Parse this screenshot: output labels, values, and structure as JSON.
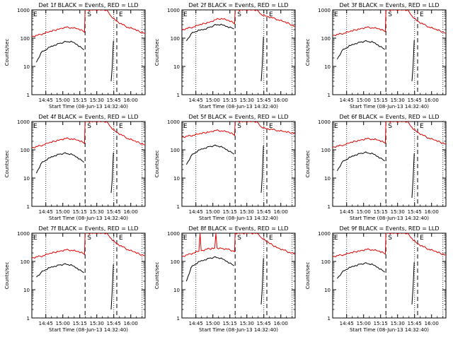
{
  "figure": {
    "colors": {
      "events": "#000000",
      "lld": "#e00000",
      "axes": "#000000",
      "markers": "#000000"
    }
  },
  "chart_data": [
    {
      "type": "line",
      "title": "Det 1f BLACK = Events, RED = LLD",
      "xlabel": "Start Time (08-Jun-13 14:32:40)",
      "ylabel": "Counts/sec",
      "x_ticks": [
        "14:45",
        "15:00",
        "15:15",
        "15:30",
        "15:45",
        "16:00"
      ],
      "y_ticks": [
        "1",
        "10",
        "100",
        "1000"
      ],
      "xlim_minutes_after_start": [
        0,
        100
      ],
      "ylim": [
        1,
        1000
      ],
      "yscale": "log",
      "markers": [
        {
          "label": "S",
          "x": 47
        },
        {
          "label": "E",
          "x": 75
        }
      ],
      "series": [
        {
          "name": "BLACK = Events",
          "color": "#000000",
          "x": [
            4,
            8,
            12,
            16,
            20,
            24,
            28,
            32,
            36,
            40,
            44,
            46,
            70,
            71,
            72
          ],
          "values": [
            14,
            30,
            38,
            48,
            57,
            65,
            72,
            75,
            72,
            60,
            45,
            38,
            3,
            10,
            80
          ]
        },
        {
          "name": "RED = LLD",
          "color": "#e00000",
          "x": [
            0,
            5,
            10,
            15,
            20,
            25,
            30,
            35,
            40,
            45,
            46.5,
            47,
            60,
            66,
            70,
            75,
            80,
            85,
            90,
            95,
            100
          ],
          "values": [
            115,
            125,
            145,
            165,
            190,
            220,
            240,
            235,
            215,
            180,
            160,
            1000,
            1000,
            1000,
            600,
            400,
            300,
            240,
            210,
            170,
            150
          ]
        }
      ]
    },
    {
      "type": "line",
      "title": "Det 2f BLACK = Events, RED = LLD",
      "xlabel": "Start Time (08-Jun-13 14:32:40)",
      "ylabel": "Counts/sec",
      "x_ticks": [
        "14:45",
        "15:00",
        "15:15",
        "15:30",
        "15:45",
        "16:00"
      ],
      "y_ticks": [
        "1",
        "10",
        "100",
        "1000"
      ],
      "xlim_minutes_after_start": [
        0,
        100
      ],
      "ylim": [
        1,
        1000
      ],
      "yscale": "log",
      "markers": [
        {
          "label": "S",
          "x": 47
        },
        {
          "label": "E",
          "x": 75
        }
      ],
      "series": [
        {
          "name": "BLACK = Events",
          "color": "#000000",
          "x": [
            4,
            8,
            12,
            16,
            20,
            24,
            28,
            32,
            36,
            40,
            44,
            46,
            70,
            71,
            72
          ],
          "values": [
            80,
            140,
            170,
            190,
            210,
            240,
            280,
            300,
            290,
            260,
            230,
            210,
            3,
            12,
            110
          ]
        },
        {
          "name": "RED = LLD",
          "color": "#e00000",
          "x": [
            0,
            5,
            10,
            15,
            20,
            25,
            30,
            35,
            40,
            45,
            46.5,
            47,
            60,
            66,
            70,
            75,
            80,
            85,
            90,
            95,
            100
          ],
          "values": [
            200,
            220,
            250,
            290,
            330,
            380,
            450,
            500,
            430,
            360,
            320,
            1000,
            1000,
            1000,
            700,
            600,
            520,
            450,
            380,
            320,
            260
          ]
        }
      ]
    },
    {
      "type": "line",
      "title": "Det 3f BLACK = Events, RED = LLD",
      "xlabel": "Start Time (08-Jun-13 14:32:40)",
      "ylabel": "Counts/sec",
      "x_ticks": [
        "14:45",
        "15:00",
        "15:15",
        "15:30",
        "15:45",
        "16:00"
      ],
      "y_ticks": [
        "1",
        "10",
        "100",
        "1000"
      ],
      "xlim_minutes_after_start": [
        0,
        100
      ],
      "ylim": [
        1,
        1000
      ],
      "yscale": "log",
      "markers": [
        {
          "label": "S",
          "x": 47
        },
        {
          "label": "E",
          "x": 75
        }
      ],
      "series": [
        {
          "name": "BLACK = Events",
          "color": "#000000",
          "x": [
            4,
            8,
            12,
            16,
            20,
            24,
            28,
            32,
            36,
            40,
            44,
            46,
            70,
            71,
            72
          ],
          "values": [
            18,
            35,
            45,
            55,
            65,
            72,
            78,
            75,
            70,
            58,
            45,
            40,
            3,
            10,
            85
          ]
        },
        {
          "name": "RED = LLD",
          "color": "#e00000",
          "x": [
            0,
            5,
            10,
            15,
            20,
            25,
            30,
            35,
            40,
            45,
            46.5,
            47,
            60,
            66,
            70,
            75,
            80,
            85,
            90,
            95,
            100
          ],
          "values": [
            125,
            135,
            150,
            170,
            195,
            220,
            240,
            235,
            215,
            185,
            170,
            1000,
            1000,
            1000,
            620,
            400,
            310,
            250,
            210,
            180,
            150
          ]
        }
      ]
    },
    {
      "type": "line",
      "title": "Det 4f BLACK = Events, RED = LLD",
      "xlabel": "Start Time (08-Jun-13 14:32:40)",
      "ylabel": "Counts/sec",
      "x_ticks": [
        "14:45",
        "15:00",
        "15:15",
        "15:30",
        "15:45",
        "16:00"
      ],
      "y_ticks": [
        "1",
        "10",
        "100",
        "1000"
      ],
      "xlim_minutes_after_start": [
        0,
        100
      ],
      "ylim": [
        1,
        1000
      ],
      "yscale": "log",
      "markers": [
        {
          "label": "S",
          "x": 47
        },
        {
          "label": "E",
          "x": 75
        }
      ],
      "series": [
        {
          "name": "BLACK = Events",
          "color": "#000000",
          "x": [
            4,
            8,
            12,
            16,
            20,
            24,
            28,
            32,
            36,
            40,
            44,
            46,
            70,
            71,
            72
          ],
          "values": [
            15,
            32,
            42,
            52,
            62,
            70,
            75,
            72,
            66,
            55,
            42,
            36,
            3,
            9,
            80
          ]
        },
        {
          "name": "RED = LLD",
          "color": "#e00000",
          "x": [
            0,
            5,
            10,
            15,
            20,
            25,
            30,
            35,
            40,
            45,
            46.5,
            47,
            60,
            66,
            70,
            75,
            80,
            85,
            90,
            95,
            100
          ],
          "values": [
            120,
            130,
            150,
            175,
            200,
            230,
            250,
            245,
            220,
            185,
            165,
            1000,
            1000,
            1000,
            620,
            420,
            320,
            250,
            210,
            175,
            150
          ]
        }
      ]
    },
    {
      "type": "line",
      "title": "Det 5f BLACK = Events, RED = LLD",
      "xlabel": "Start Time (08-Jun-13 14:32:40)",
      "ylabel": "Counts/sec",
      "x_ticks": [
        "14:45",
        "15:00",
        "15:15",
        "15:30",
        "15:45",
        "16:00"
      ],
      "y_ticks": [
        "1",
        "10",
        "100",
        "1000"
      ],
      "xlim_minutes_after_start": [
        0,
        100
      ],
      "ylim": [
        1,
        1000
      ],
      "yscale": "log",
      "markers": [
        {
          "label": "S",
          "x": 47
        },
        {
          "label": "E",
          "x": 75
        }
      ],
      "series": [
        {
          "name": "BLACK = Events",
          "color": "#000000",
          "x": [
            4,
            8,
            12,
            16,
            20,
            24,
            28,
            32,
            36,
            40,
            44,
            46,
            70,
            71,
            72
          ],
          "values": [
            30,
            60,
            80,
            100,
            115,
            130,
            140,
            135,
            120,
            100,
            80,
            70,
            3,
            12,
            140
          ]
        },
        {
          "name": "RED = LLD",
          "color": "#e00000",
          "x": [
            0,
            5,
            10,
            15,
            20,
            25,
            30,
            35,
            40,
            45,
            46.5,
            47,
            60,
            66,
            70,
            75,
            80,
            85,
            90,
            95,
            100
          ],
          "values": [
            280,
            300,
            330,
            360,
            400,
            440,
            480,
            470,
            430,
            360,
            320,
            1000,
            1000,
            1000,
            650,
            560,
            520,
            480,
            440,
            410,
            380
          ]
        }
      ]
    },
    {
      "type": "line",
      "title": "Det 6f BLACK = Events, RED = LLD",
      "xlabel": "Start Time (08-Jun-13 14:32:40)",
      "ylabel": "Counts/sec",
      "x_ticks": [
        "14:45",
        "15:00",
        "15:15",
        "15:30",
        "15:45",
        "16:00"
      ],
      "y_ticks": [
        "1",
        "10",
        "100",
        "1000"
      ],
      "xlim_minutes_after_start": [
        0,
        100
      ],
      "ylim": [
        1,
        1000
      ],
      "yscale": "log",
      "markers": [
        {
          "label": "S",
          "x": 47
        },
        {
          "label": "E",
          "x": 75
        }
      ],
      "series": [
        {
          "name": "BLACK = Events",
          "color": "#000000",
          "x": [
            4,
            8,
            12,
            16,
            20,
            24,
            28,
            32,
            36,
            40,
            44,
            46,
            70,
            71,
            72
          ],
          "values": [
            18,
            35,
            45,
            55,
            66,
            74,
            80,
            76,
            70,
            58,
            46,
            40,
            2,
            9,
            75
          ]
        },
        {
          "name": "RED = LLD",
          "color": "#e00000",
          "x": [
            0,
            5,
            10,
            15,
            20,
            25,
            30,
            35,
            40,
            45,
            46.5,
            47,
            60,
            66,
            70,
            75,
            80,
            85,
            90,
            95,
            100
          ],
          "values": [
            125,
            135,
            150,
            175,
            200,
            225,
            245,
            240,
            220,
            185,
            170,
            1000,
            1000,
            1000,
            620,
            420,
            320,
            260,
            220,
            185,
            160
          ]
        }
      ]
    },
    {
      "type": "line",
      "title": "Det 7f BLACK = Events, RED = LLD",
      "xlabel": "Start Time (08-Jun-13 14:32:40)",
      "ylabel": "Counts/sec",
      "x_ticks": [
        "14:45",
        "15:00",
        "15:15",
        "15:30",
        "15:45",
        "16:00"
      ],
      "y_ticks": [
        "1",
        "10",
        "100",
        "1000"
      ],
      "xlim_minutes_after_start": [
        0,
        100
      ],
      "ylim": [
        1,
        1000
      ],
      "yscale": "log",
      "markers": [
        {
          "label": "S",
          "x": 47
        },
        {
          "label": "E",
          "x": 75
        }
      ],
      "series": [
        {
          "name": "BLACK = Events",
          "color": "#000000",
          "x": [
            4,
            8,
            12,
            16,
            20,
            24,
            28,
            32,
            36,
            40,
            44,
            46,
            70,
            71,
            72
          ],
          "values": [
            28,
            40,
            50,
            60,
            68,
            75,
            80,
            77,
            70,
            58,
            45,
            40,
            2,
            10,
            80
          ]
        },
        {
          "name": "RED = LLD",
          "color": "#e00000",
          "x": [
            0,
            5,
            10,
            15,
            20,
            25,
            30,
            35,
            40,
            45,
            46.5,
            47,
            60,
            66,
            70,
            75,
            80,
            85,
            90,
            95,
            100
          ],
          "values": [
            135,
            145,
            160,
            185,
            210,
            235,
            255,
            250,
            225,
            195,
            175,
            1000,
            1000,
            1000,
            650,
            430,
            330,
            260,
            220,
            180,
            160
          ]
        }
      ]
    },
    {
      "type": "line",
      "title": "Det 8f BLACK = Events, RED = LLD",
      "xlabel": "Start Time (08-Jun-13 14:32:40)",
      "ylabel": "Counts/sec",
      "x_ticks": [
        "14:45",
        "15:00",
        "15:15",
        "15:30",
        "15:45",
        "16:00"
      ],
      "y_ticks": [
        "1",
        "10",
        "100",
        "1000"
      ],
      "xlim_minutes_after_start": [
        0,
        100
      ],
      "ylim": [
        1,
        1000
      ],
      "yscale": "log",
      "markers": [
        {
          "label": "S",
          "x": 47
        },
        {
          "label": "E",
          "x": 75
        }
      ],
      "series": [
        {
          "name": "BLACK = Events",
          "color": "#000000",
          "x": [
            4,
            8,
            12,
            16,
            20,
            24,
            28,
            32,
            36,
            40,
            44,
            46,
            70,
            71,
            72
          ],
          "values": [
            20,
            60,
            80,
            100,
            115,
            130,
            140,
            135,
            120,
            100,
            80,
            70,
            3,
            12,
            130
          ]
        },
        {
          "name": "RED = LLD",
          "color": "#e00000",
          "x": [
            0,
            5,
            10,
            15,
            16,
            17,
            22,
            29,
            30,
            31,
            35,
            40,
            45,
            46.5,
            47,
            60,
            66,
            70,
            75,
            80,
            85,
            90,
            95,
            100
          ],
          "values": [
            150,
            170,
            200,
            230,
            1000,
            240,
            270,
            300,
            1000,
            300,
            290,
            270,
            240,
            220,
            1000,
            1000,
            1000,
            700,
            500,
            380,
            300,
            250,
            210,
            180
          ]
        }
      ]
    },
    {
      "type": "line",
      "title": "Det 9f BLACK = Events, RED = LLD",
      "xlabel": "Start Time (08-Jun-13 14:32:40)",
      "ylabel": "Counts/sec",
      "x_ticks": [
        "14:45",
        "15:00",
        "15:15",
        "15:30",
        "15:45",
        "16:00"
      ],
      "y_ticks": [
        "1",
        "10",
        "100",
        "1000"
      ],
      "xlim_minutes_after_start": [
        0,
        100
      ],
      "ylim": [
        1,
        1000
      ],
      "yscale": "log",
      "markers": [
        {
          "label": "S",
          "x": 47
        },
        {
          "label": "E",
          "x": 75
        }
      ],
      "series": [
        {
          "name": "BLACK = Events",
          "color": "#000000",
          "x": [
            4,
            8,
            12,
            16,
            20,
            24,
            28,
            32,
            36,
            40,
            44,
            46,
            70,
            71,
            72
          ],
          "values": [
            25,
            40,
            52,
            62,
            72,
            80,
            86,
            82,
            74,
            62,
            48,
            42,
            3,
            12,
            95
          ]
        },
        {
          "name": "RED = LLD",
          "color": "#e00000",
          "x": [
            0,
            5,
            10,
            15,
            20,
            25,
            30,
            35,
            40,
            45,
            46.5,
            47,
            60,
            66,
            70,
            75,
            80,
            85,
            90,
            95,
            100
          ],
          "values": [
            150,
            160,
            175,
            195,
            220,
            245,
            265,
            260,
            235,
            200,
            180,
            1000,
            1000,
            1000,
            650,
            430,
            330,
            270,
            230,
            195,
            170
          ]
        }
      ]
    }
  ]
}
